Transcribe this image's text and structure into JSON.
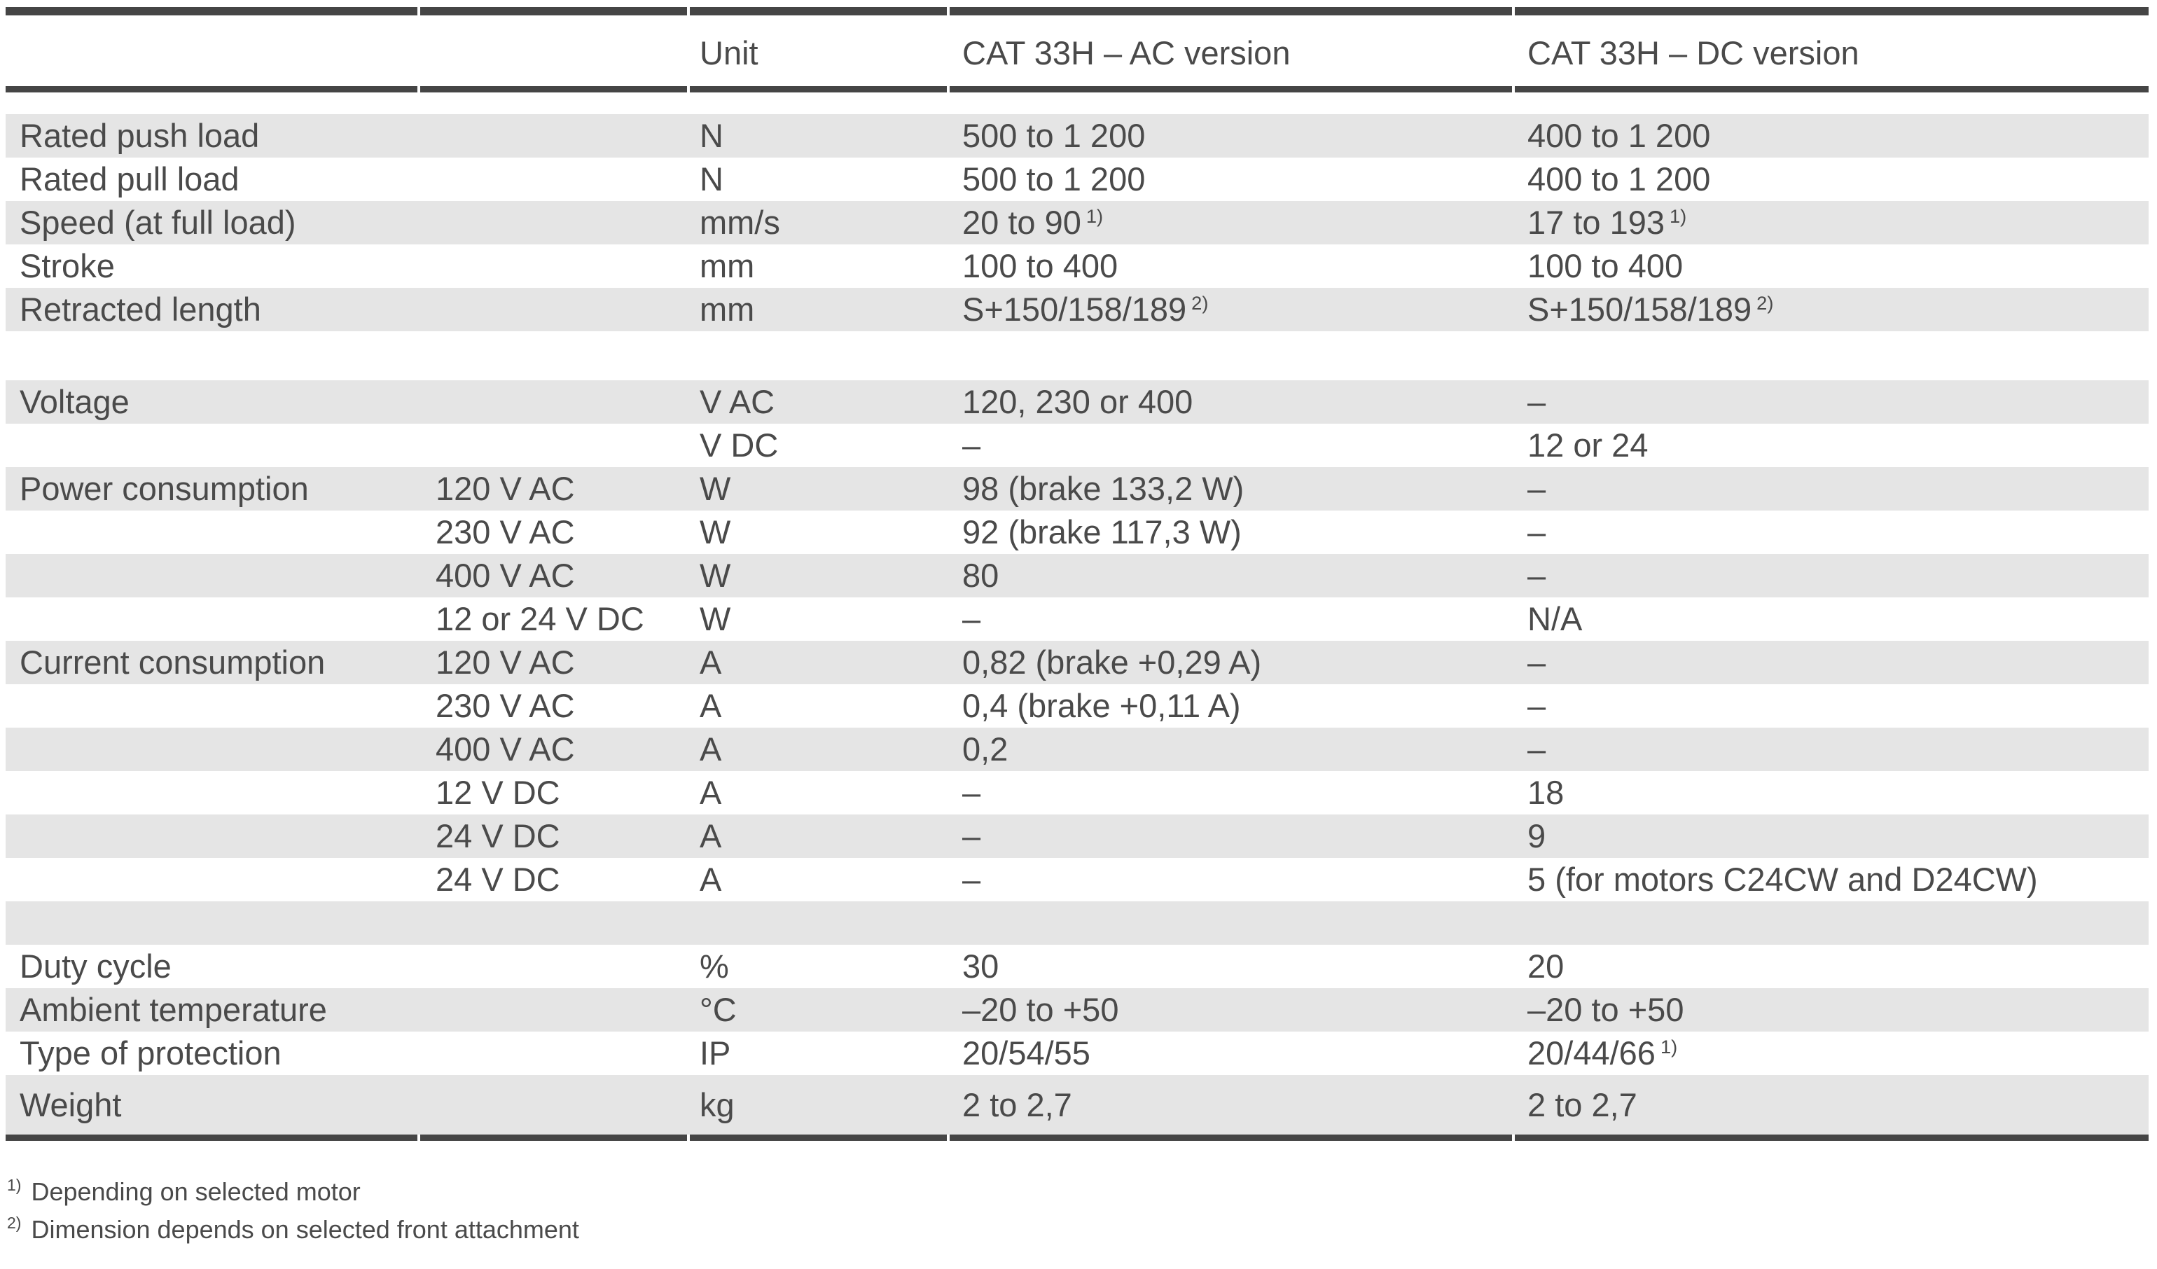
{
  "table": {
    "header": {
      "label": "",
      "sub": "",
      "unit": "Unit",
      "ac": "CAT 33H – AC version",
      "dc": "CAT 33H – DC version"
    },
    "rows": [
      {
        "type": "data",
        "shade": true,
        "label": "Rated push load",
        "sub": "",
        "unit": "N",
        "ac": "500 to 1 200",
        "dc": "400 to 1 200"
      },
      {
        "type": "data",
        "shade": false,
        "label": "Rated pull load",
        "sub": "",
        "unit": "N",
        "ac": "500 to 1 200",
        "dc": "400 to 1 200"
      },
      {
        "type": "data",
        "shade": true,
        "label": "Speed (at full load)",
        "sub": "",
        "unit": "mm/s",
        "ac": "20 to 90",
        "ac_sup": "1)",
        "dc": "17 to 193",
        "dc_sup": "1)"
      },
      {
        "type": "data",
        "shade": false,
        "label": "Stroke",
        "sub": "",
        "unit": "mm",
        "ac": "100 to 400",
        "dc": "100 to 400"
      },
      {
        "type": "data",
        "shade": true,
        "label": "Retracted length",
        "sub": "",
        "unit": "mm",
        "ac": "S+150/158/189",
        "ac_sup": "2)",
        "dc": "S+150/158/189",
        "dc_sup": "2)"
      },
      {
        "type": "spacer",
        "shade": false
      },
      {
        "type": "data",
        "shade": true,
        "label": "Voltage",
        "sub": "",
        "unit": "V AC",
        "ac": "120, 230 or 400",
        "dc": "–"
      },
      {
        "type": "data",
        "shade": false,
        "label": "",
        "sub": "",
        "unit": "V DC",
        "ac": "–",
        "dc": "12 or 24"
      },
      {
        "type": "data",
        "shade": true,
        "label": "Power consumption",
        "sub": "120 V AC",
        "unit": "W",
        "ac": "98 (brake 133,2 W)",
        "dc": "–"
      },
      {
        "type": "data",
        "shade": false,
        "label": "",
        "sub": "230 V AC",
        "unit": "W",
        "ac": "92 (brake 117,3 W)",
        "dc": "–"
      },
      {
        "type": "data",
        "shade": true,
        "label": "",
        "sub": "400 V AC",
        "unit": "W",
        "ac": "80",
        "dc": "–"
      },
      {
        "type": "data",
        "shade": false,
        "label": "",
        "sub": "12 or 24 V DC",
        "unit": "W",
        "ac": "–",
        "dc": "N/A"
      },
      {
        "type": "data",
        "shade": true,
        "label": "Current consumption",
        "sub": "120 V AC",
        "unit": "A",
        "ac": "0,82 (brake +0,29 A)",
        "dc": "–"
      },
      {
        "type": "data",
        "shade": false,
        "label": "",
        "sub": "230 V AC",
        "unit": "A",
        "ac": "0,4 (brake +0,11 A)",
        "dc": "–"
      },
      {
        "type": "data",
        "shade": true,
        "label": "",
        "sub": "400 V AC",
        "unit": "A",
        "ac": "0,2",
        "dc": "–"
      },
      {
        "type": "data",
        "shade": false,
        "label": "",
        "sub": "12 V DC",
        "unit": "A",
        "ac": "–",
        "dc": "18"
      },
      {
        "type": "data",
        "shade": true,
        "label": "",
        "sub": "24 V DC",
        "unit": "A",
        "ac": "–",
        "dc": "9"
      },
      {
        "type": "data",
        "shade": false,
        "label": "",
        "sub": "24 V DC",
        "unit": "A",
        "ac": "–",
        "dc": "5 (for motors C24CW and D24CW)"
      },
      {
        "type": "spacer",
        "shade": true
      },
      {
        "type": "data",
        "shade": false,
        "label": "Duty cycle",
        "sub": "",
        "unit": "%",
        "ac": "30",
        "dc": "20"
      },
      {
        "type": "data",
        "shade": true,
        "label": "Ambient temperature",
        "sub": "",
        "unit": "°C",
        "ac": "–20 to +50",
        "dc": "–20 to +50"
      },
      {
        "type": "data",
        "shade": false,
        "label": "Type of protection",
        "sub": "",
        "unit": "IP",
        "ac": "20/54/55",
        "dc": "20/44/66",
        "dc_sup": "1)"
      },
      {
        "type": "data",
        "shade": true,
        "last": true,
        "label": "Weight",
        "sub": "",
        "unit": "kg",
        "ac": "2 to 2,7",
        "dc": "2 to 2,7"
      }
    ],
    "footnotes": [
      {
        "marker": "1)",
        "text": "Depending on selected motor"
      },
      {
        "marker": "2)",
        "text": "Dimension depends on selected front attachment"
      }
    ],
    "colors": {
      "rule": "#454545",
      "row_shade": "#e5e5e5",
      "text": "#4a4a4a",
      "background": "#ffffff"
    }
  }
}
